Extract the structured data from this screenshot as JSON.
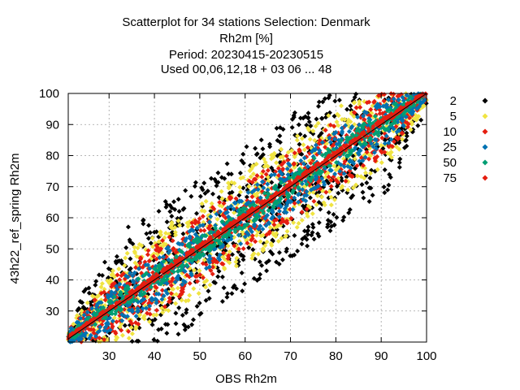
{
  "chart_data": {
    "type": "scatter",
    "title_lines": [
      "Scatterplot for   34 stations Selection: Denmark",
      "Rh2m [%]",
      "Period: 20230415-20230515",
      "Used  00,06,12,18  + 03 06 ... 48"
    ],
    "xlabel": "OBS Rh2m",
    "ylabel": "43h22_ref_spring Rh2m",
    "xlim": [
      21,
      100
    ],
    "ylim": [
      20,
      100
    ],
    "xticks": [
      30,
      40,
      50,
      60,
      70,
      80,
      90,
      100
    ],
    "yticks": [
      30,
      40,
      50,
      60,
      70,
      80,
      90,
      100
    ],
    "grid": true,
    "diagonal": true,
    "legend_position": "right",
    "series": [
      {
        "name": "2",
        "color": "#000000",
        "half_width": 23,
        "center_offset": 0,
        "min_spread": 3
      },
      {
        "name": "5",
        "color": "#f0e442",
        "half_width": 15,
        "center_offset": 0,
        "min_spread": 2.5
      },
      {
        "name": "10",
        "color": "#e51e10",
        "half_width": 11,
        "center_offset": 0,
        "min_spread": 2
      },
      {
        "name": "25",
        "color": "#0072b2",
        "half_width": 8,
        "center_offset": 0,
        "min_spread": 1.5
      },
      {
        "name": "50",
        "color": "#009e73",
        "half_width": 3.5,
        "center_offset": 0.5,
        "min_spread": 1
      },
      {
        "name": "75",
        "color": "#e51e10",
        "half_width": 1,
        "center_offset": 0.5,
        "min_spread": 0.5
      }
    ]
  }
}
